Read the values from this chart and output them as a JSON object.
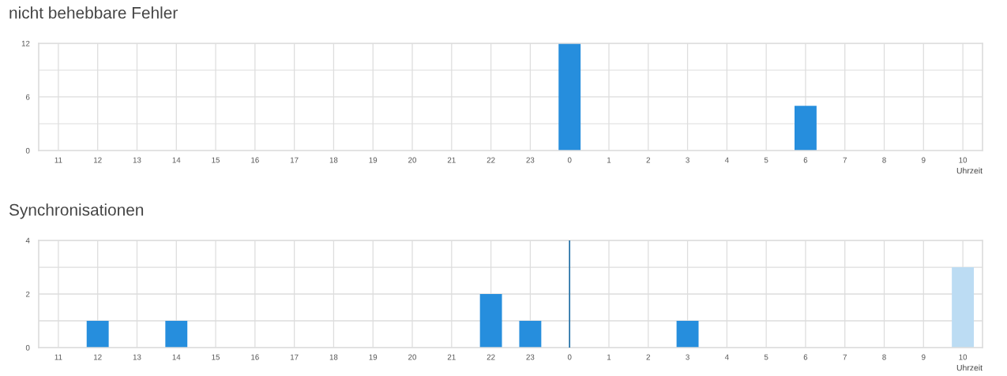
{
  "chart_data": [
    {
      "type": "bar",
      "title": "nicht behebbare Fehler",
      "xlabel": "Uhrzeit",
      "categories": [
        "11",
        "12",
        "13",
        "14",
        "15",
        "16",
        "17",
        "18",
        "19",
        "20",
        "21",
        "22",
        "23",
        "0",
        "1",
        "2",
        "3",
        "4",
        "5",
        "6",
        "7",
        "8",
        "9",
        "10"
      ],
      "values": [
        0,
        0,
        0,
        0,
        0,
        0,
        0,
        0,
        0,
        0,
        0,
        0,
        0,
        12,
        0,
        0,
        0,
        0,
        0,
        5,
        0,
        0,
        0,
        0
      ],
      "color": "#268edd",
      "ylim": [
        0,
        12
      ],
      "yticks": [
        0,
        {
          "value": 3,
          "label": null
        },
        6,
        {
          "value": 9,
          "label": null
        },
        12
      ],
      "grid": true
    },
    {
      "type": "bar",
      "title": "Synchronisationen",
      "xlabel": "Uhrzeit",
      "categories": [
        "11",
        "12",
        "13",
        "14",
        "15",
        "16",
        "17",
        "18",
        "19",
        "20",
        "21",
        "22",
        "23",
        "0",
        "1",
        "2",
        "3",
        "4",
        "5",
        "6",
        "7",
        "8",
        "9",
        "10"
      ],
      "values": [
        0,
        1,
        0,
        1,
        0,
        0,
        0,
        0,
        0,
        0,
        0,
        2,
        1,
        0,
        0,
        0,
        1,
        0,
        0,
        0,
        0,
        0,
        0,
        3
      ],
      "colors": [
        "#268edd",
        "#268edd",
        "#268edd",
        "#268edd",
        "#268edd",
        "#268edd",
        "#268edd",
        "#268edd",
        "#268edd",
        "#268edd",
        "#268edd",
        "#268edd",
        "#268edd",
        "#268edd",
        "#268edd",
        "#268edd",
        "#268edd",
        "#268edd",
        "#268edd",
        "#268edd",
        "#268edd",
        "#268edd",
        "#268edd",
        "#bcdcf3"
      ],
      "ylim": [
        0,
        4
      ],
      "yticks": [
        0,
        {
          "value": 1,
          "label": null
        },
        2,
        {
          "value": 3,
          "label": null
        },
        4
      ],
      "grid": true,
      "ref_lines": [
        {
          "axis": "x",
          "value": "0",
          "color": "#1f6ea6"
        }
      ]
    }
  ]
}
